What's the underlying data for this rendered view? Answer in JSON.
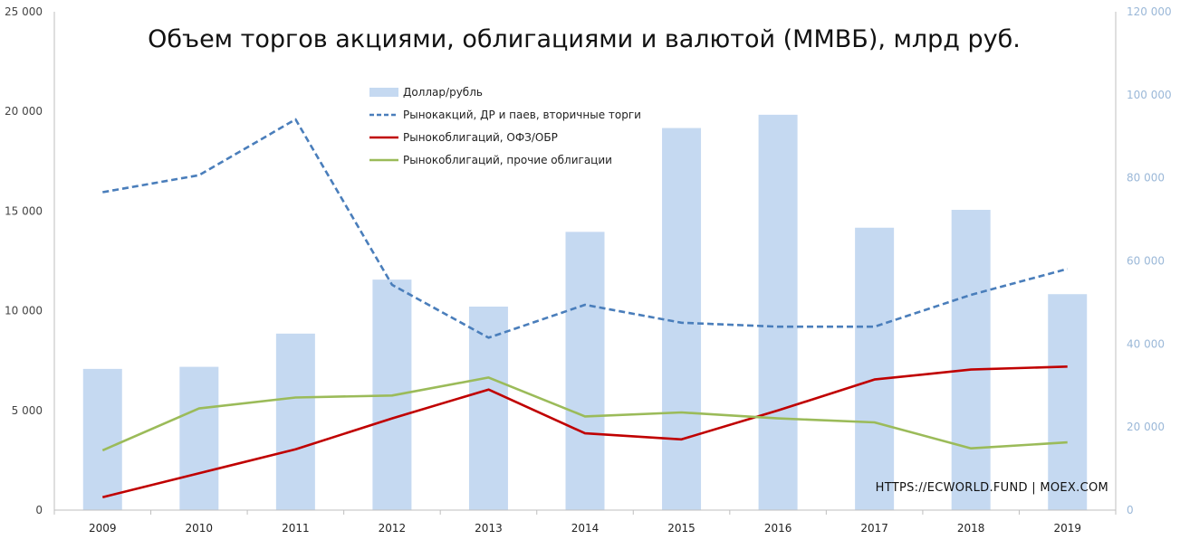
{
  "chart_data": {
    "type": "bar",
    "title": "Объем торгов акциями, облигациями и валютой (ММВБ), млрд руб.",
    "categories": [
      "2009",
      "2010",
      "2011",
      "2012",
      "2013",
      "2014",
      "2015",
      "2016",
      "2017",
      "2018",
      "2019"
    ],
    "y_left": {
      "range": [
        0,
        25000
      ],
      "ticks": [
        0,
        5000,
        10000,
        15000,
        20000,
        25000
      ],
      "tick_labels": [
        "0",
        "5 000",
        "10 000",
        "15 000",
        "20 000",
        "25 000"
      ]
    },
    "y_right": {
      "range": [
        0,
        120000
      ],
      "ticks": [
        0,
        20000,
        40000,
        60000,
        80000,
        100000,
        120000
      ],
      "tick_labels": [
        "0",
        "20 000",
        "40 000",
        "60 000",
        "80 000",
        "100 000",
        "120 000"
      ]
    },
    "grid": false,
    "legend_position": "top-center",
    "series": [
      {
        "name": "Доллар/рубль",
        "type": "bar",
        "axis": "right",
        "color": "#c5d9f1",
        "values": [
          34000,
          34500,
          42500,
          55500,
          49000,
          67000,
          92000,
          95200,
          68000,
          72300,
          52000
        ]
      },
      {
        "name": "Рынокакций, ДР и паев, вторичные торги",
        "type": "line",
        "style": "dashed",
        "axis": "left",
        "color": "#4a7ebb",
        "values": [
          15950,
          16800,
          19600,
          11300,
          8650,
          10300,
          9400,
          9200,
          9200,
          10800,
          12100
        ]
      },
      {
        "name": "Рынокоблигаций, ОФЗ/ОБР",
        "type": "line",
        "style": "solid",
        "axis": "left",
        "color": "#c00000",
        "values": [
          650,
          1850,
          3050,
          4600,
          6050,
          3850,
          3550,
          5000,
          6550,
          7050,
          7200
        ]
      },
      {
        "name": "Рынокоблигаций, прочие облигации",
        "type": "line",
        "style": "solid",
        "axis": "left",
        "color": "#9bbb59",
        "values": [
          3000,
          5100,
          5650,
          5750,
          6650,
          4700,
          4900,
          4600,
          4400,
          3100,
          3400
        ]
      }
    ]
  },
  "watermark": "HTTPS://ECWORLD.FUND | MOEX.COM"
}
